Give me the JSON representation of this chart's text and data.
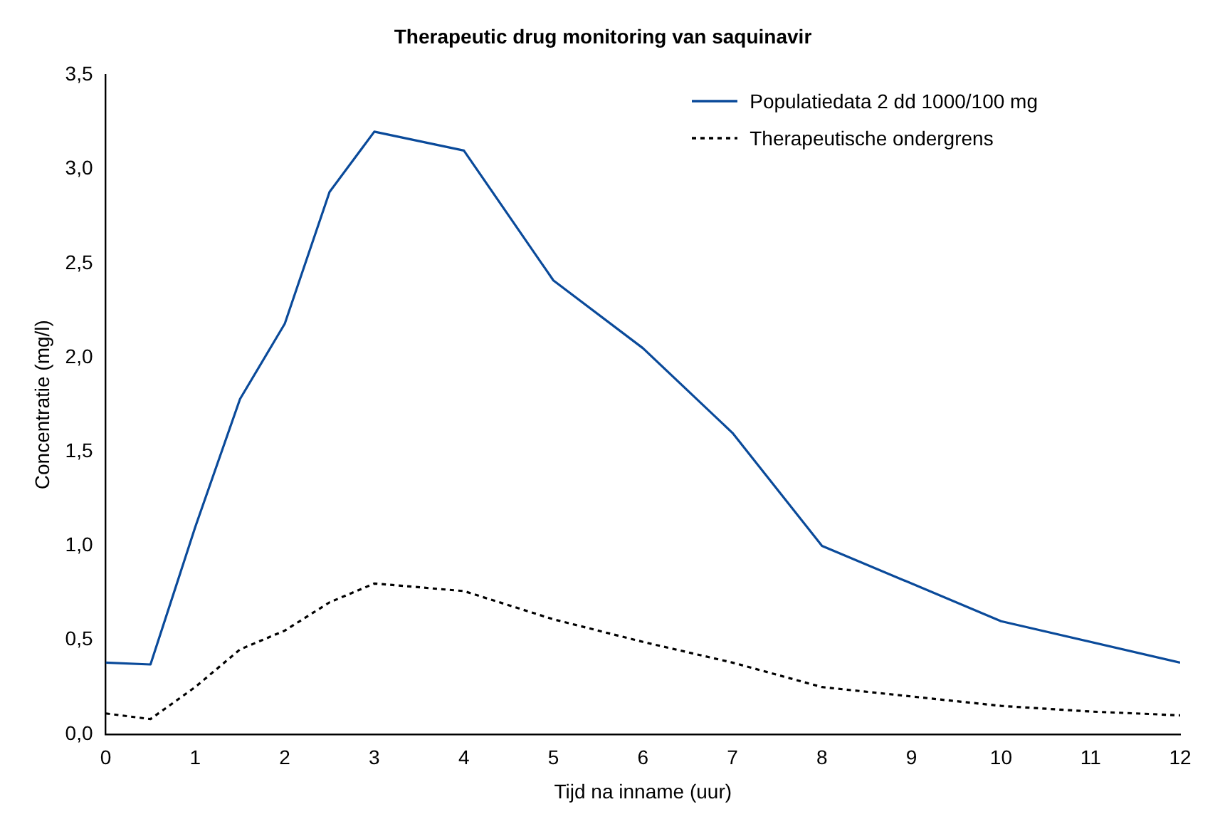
{
  "chart_data": {
    "type": "line",
    "title": "Therapeutic drug monitoring van saquinavir",
    "xlabel": "Tijd na inname (uur)",
    "ylabel": "Concentratie (mg/l)",
    "xlim": [
      0,
      12
    ],
    "xticks": [
      0,
      1,
      2,
      3,
      4,
      5,
      6,
      7,
      8,
      9,
      10,
      11,
      12
    ],
    "ylim": [
      0,
      3.5
    ],
    "yticks": [
      {
        "value": 0,
        "label": "0,0"
      },
      {
        "value": 0.5,
        "label": "0,5"
      },
      {
        "value": 1,
        "label": "1,0"
      },
      {
        "value": 1.5,
        "label": "1,5"
      },
      {
        "value": 2,
        "label": "2,0"
      },
      {
        "value": 2.5,
        "label": "2,5"
      },
      {
        "value": 3,
        "label": "3,0"
      },
      {
        "value": 3.5,
        "label": "3,5"
      }
    ],
    "grid": false,
    "legend": "top right",
    "marker": "none",
    "series": [
      {
        "name": "Populatiedata 2 dd 1000/100 mg",
        "color": "#0a4a9a",
        "line_style": "solid",
        "x": [
          0,
          0.5,
          1,
          1.5,
          2,
          2.5,
          3,
          4,
          5,
          6,
          7,
          8,
          10,
          12
        ],
        "values": [
          0.38,
          0.37,
          1.1,
          1.78,
          2.18,
          2.88,
          3.2,
          3.1,
          2.41,
          2.05,
          1.6,
          1.0,
          0.6,
          0.38
        ]
      },
      {
        "name": "Therapeutische ondergrens",
        "color": "#000000",
        "line_style": "dotted",
        "x": [
          0,
          0.5,
          1,
          1.5,
          2,
          2.5,
          3,
          4,
          5,
          6,
          7,
          8,
          9,
          10,
          11,
          12
        ],
        "values": [
          0.11,
          0.08,
          0.25,
          0.45,
          0.55,
          0.7,
          0.8,
          0.76,
          0.61,
          0.49,
          0.38,
          0.25,
          0.2,
          0.15,
          0.12,
          0.1
        ]
      }
    ]
  }
}
